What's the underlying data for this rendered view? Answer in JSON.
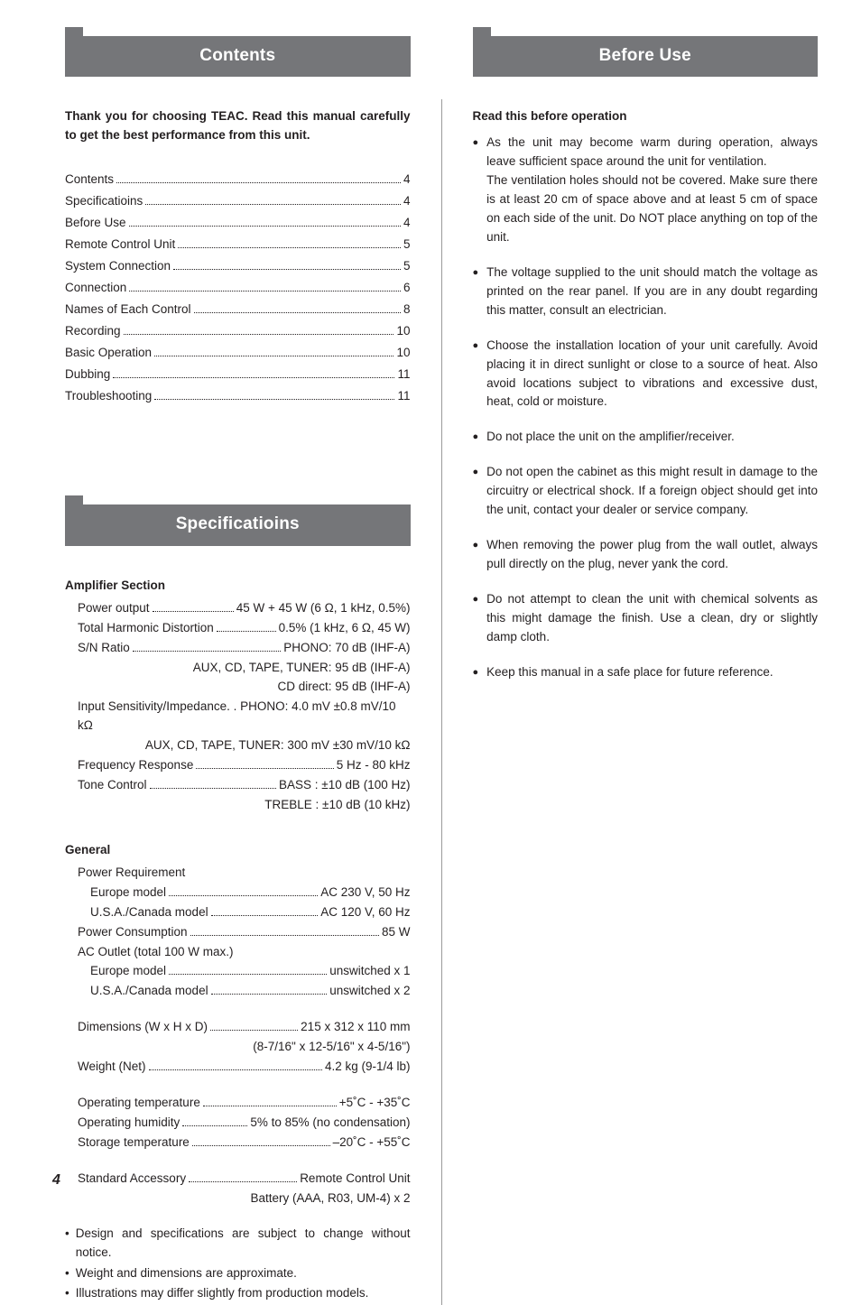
{
  "left": {
    "contents_header": "Contents",
    "lead": "Thank you for choosing TEAC. Read this manual carefully to get the best performance from this unit.",
    "toc": [
      {
        "label": "Contents",
        "page": "4"
      },
      {
        "label": "Specificatioins",
        "page": "4"
      },
      {
        "label": "Before Use",
        "page": "4"
      },
      {
        "label": "Remote Control Unit",
        "page": "5"
      },
      {
        "label": "System Connection",
        "page": "5"
      },
      {
        "label": "Connection",
        "page": "6"
      },
      {
        "label": "Names of Each Control",
        "page": "8"
      },
      {
        "label": "Recording",
        "page": "10"
      },
      {
        "label": "Basic Operation",
        "page": "10"
      },
      {
        "label": "Dubbing",
        "page": "11"
      },
      {
        "label": "Troubleshooting",
        "page": "11"
      }
    ],
    "spec_header": "Specificatioins",
    "amp_section_title": "Amplifier Section",
    "amp": {
      "power_output_label": "Power output",
      "power_output_val": "45 W + 45 W (6 Ω, 1 kHz, 0.5%)",
      "thd_label": "Total Harmonic Distortion",
      "thd_val": "0.5% (1 kHz, 6 Ω, 45 W)",
      "sn_label": "S/N Ratio",
      "sn_val": "PHONO: 70 dB (IHF-A)",
      "sn_line2": "AUX, CD, TAPE, TUNER: 95 dB (IHF-A)",
      "sn_line3": "CD direct: 95 dB (IHF-A)",
      "imp_line1": "Input Sensitivity/Impedance. . PHONO: 4.0 mV ±0.8 mV/10 kΩ",
      "imp_line2": "AUX, CD, TAPE, TUNER: 300 mV ±30 mV/10 kΩ",
      "freq_label": "Frequency Response",
      "freq_val": "5 Hz - 80 kHz",
      "tone_label": "Tone Control",
      "tone_val": "BASS : ±10 dB (100 Hz)",
      "tone_line2": "TREBLE : ±10 dB (10 kHz)"
    },
    "general_title": "General",
    "general": {
      "power_req_label": "Power Requirement",
      "eu_label": "Europe model",
      "eu_val": "AC 230 V, 50 Hz",
      "us_label": "U.S.A./Canada model",
      "us_val": "AC 120 V, 60 Hz",
      "pc_label": "Power Consumption",
      "pc_val": "85 W",
      "ac_outlet_label": "AC Outlet (total 100 W max.)",
      "eu2_label": "Europe model",
      "eu2_val": "unswitched x 1",
      "us2_label": "U.S.A./Canada model",
      "us2_val": "unswitched x 2",
      "dim_label": "Dimensions (W x H x D)",
      "dim_val": "215 x 312 x 110 mm",
      "dim_line2": "(8-7/16\" x 12-5/16\" x 4-5/16\")",
      "weight_label": "Weight (Net)",
      "weight_val": "4.2 kg (9-1/4 lb)",
      "optemp_label": "Operating temperature",
      "optemp_val": "+5˚C - +35˚C",
      "ophum_label": "Operating humidity",
      "ophum_val": "5% to 85% (no condensation)",
      "sttemp_label": "Storage temperature",
      "sttemp_val": "–20˚C - +55˚C",
      "acc_label": "Standard Accessory",
      "acc_val": "Remote Control Unit",
      "acc_line2": "Battery (AAA, R03, UM-4) x 2"
    },
    "notes": [
      "Design and specifications are subject to change without notice.",
      "Weight and dimensions are approximate.",
      "Illustrations may differ slightly from production models."
    ]
  },
  "right": {
    "header": "Before Use",
    "lead": "Read this before operation",
    "bullets": [
      [
        "As the unit may become warm during operation, always leave sufficient space around the unit for ventilation.",
        "The ventilation holes should not be covered. Make sure there is at least 20 cm of space above and at least 5 cm of space on each side of the unit. Do NOT place anything on top of the unit."
      ],
      [
        "The voltage supplied to the unit should match the voltage as printed on the rear panel. If you are in any doubt regarding this matter, consult an electrician."
      ],
      [
        "Choose the installation location of your unit carefully. Avoid placing it in direct sunlight or close to a source of heat. Also avoid locations subject to vibrations and excessive dust, heat, cold or moisture."
      ],
      [
        "Do not place the unit on the amplifier/receiver."
      ],
      [
        "Do not open the cabinet as this might result in damage to the circuitry or electrical shock. If a foreign object should get into the unit, contact your dealer or service company."
      ],
      [
        "When removing the power plug from the wall outlet, always pull directly on the plug, never yank the cord."
      ],
      [
        "Do not attempt to clean the unit with chemical solvents as this might damage the finish. Use a clean, dry or slightly damp cloth."
      ],
      [
        "Keep this manual in a safe place for future reference."
      ]
    ]
  },
  "page_number": "4",
  "colors": {
    "header_bg": "#757679",
    "header_fg": "#ffffff",
    "text": "#231f20",
    "divider": "#9a9a9a",
    "bg": "#ffffff"
  }
}
